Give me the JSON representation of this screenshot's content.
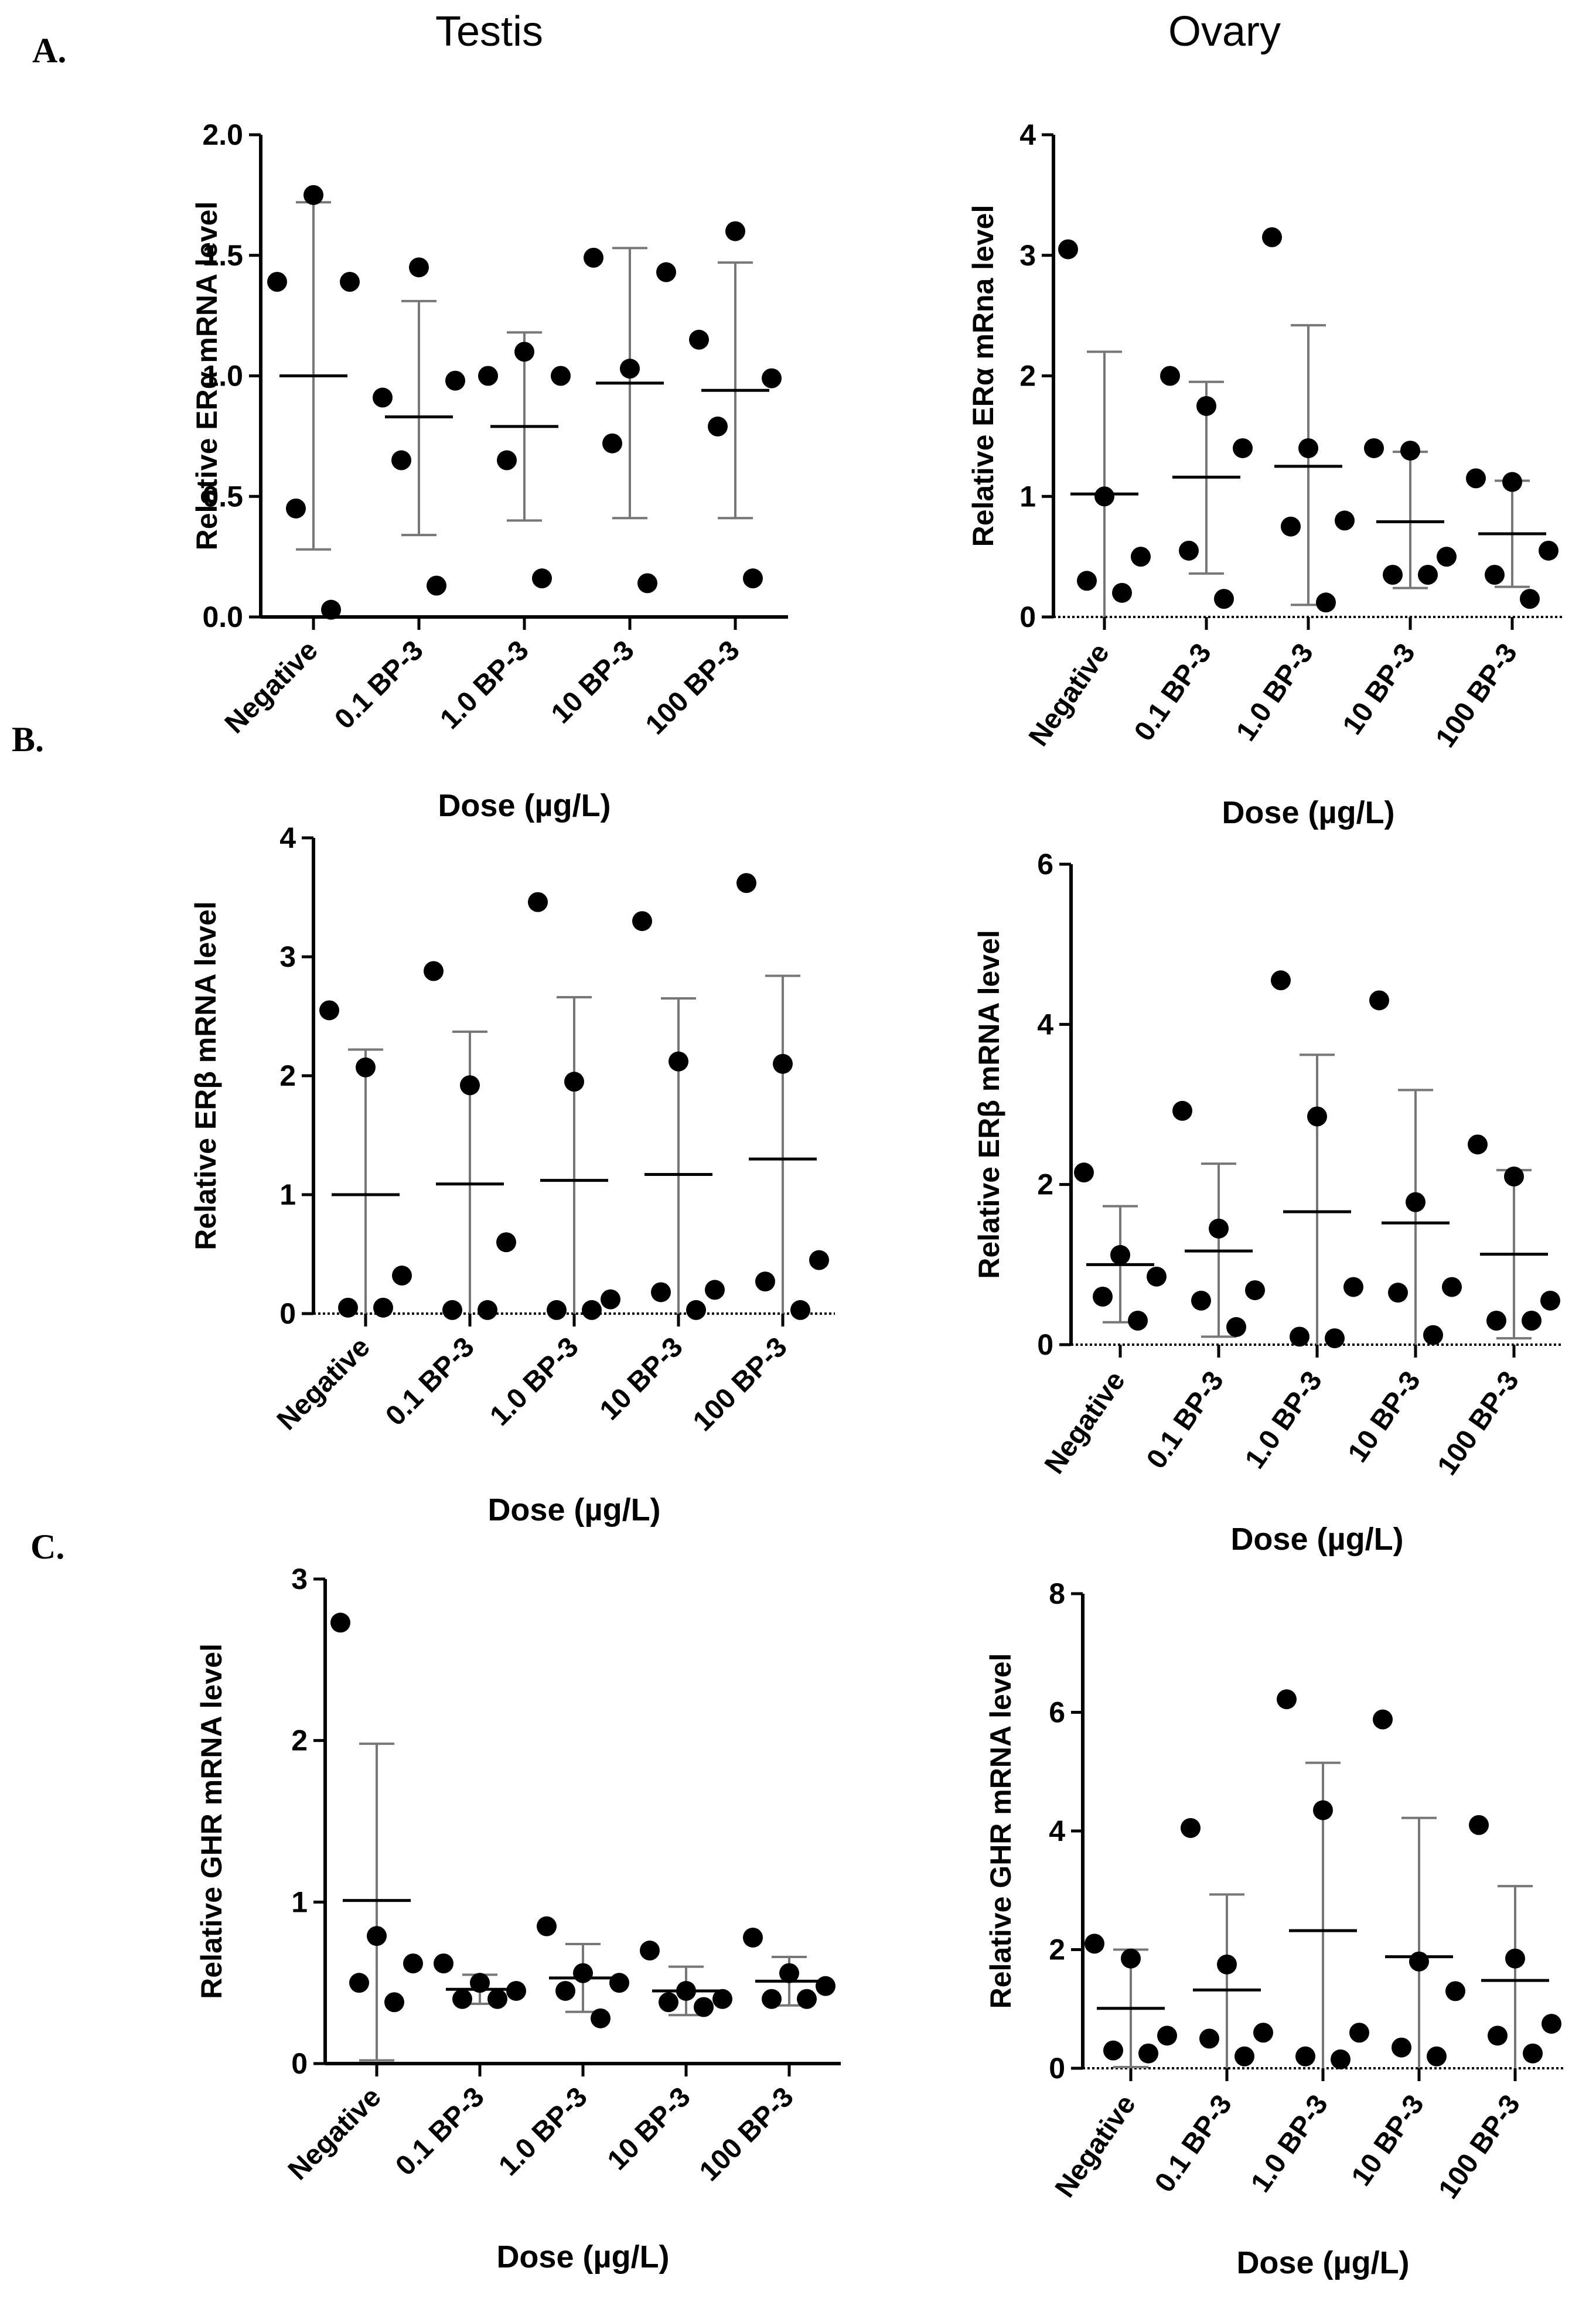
{
  "headers": {
    "col_left": "Testis",
    "col_right": "Ovary"
  },
  "panel_labels": [
    "A.",
    "B.",
    "C."
  ],
  "colors": {
    "points": "#000000",
    "axis": "#000000",
    "error_bars": "#777777",
    "mean_line": "#000000"
  },
  "chart_data": [
    {
      "type": "scatter",
      "panel": "A.",
      "tissue": "Testis",
      "ylabel": "Relative ERα mRNA level",
      "xlabel": "Dose (µg/L)",
      "ylim": [
        0,
        2.0
      ],
      "yticks": [
        "0.0",
        "0.5",
        "1.0",
        "1.5",
        "2.0"
      ],
      "zero_line": false,
      "categories": [
        "Negative",
        "0.1 BP-3",
        "1.0 BP-3",
        "10 BP-3",
        "100 BP-3"
      ],
      "points": [
        [
          1.39,
          1.75,
          1.39,
          0.45,
          0.03
        ],
        [
          0.91,
          1.45,
          0.98,
          0.65,
          0.13
        ],
        [
          1.0,
          1.1,
          1.0,
          0.65,
          0.16
        ],
        [
          1.49,
          1.03,
          1.43,
          0.72,
          0.14
        ],
        [
          1.15,
          1.6,
          0.99,
          0.79,
          0.16
        ]
      ],
      "mean": [
        1.0,
        0.83,
        0.79,
        0.97,
        0.94
      ],
      "error_low": [
        0.28,
        0.34,
        0.4,
        0.41,
        0.41
      ],
      "error_high": [
        1.72,
        1.31,
        1.18,
        1.53,
        1.47
      ]
    },
    {
      "type": "scatter",
      "panel": "A.",
      "tissue": "Ovary",
      "ylabel": "Relative ERα mRna level",
      "xlabel": "Dose (µg/L)",
      "ylim": [
        0,
        4
      ],
      "yticks": [
        "0",
        "1",
        "2",
        "3",
        "4"
      ],
      "zero_line": true,
      "categories": [
        "Negative",
        "0.1 BP-3",
        "1.0 BP-3",
        "10 BP-3",
        "100 BP-3"
      ],
      "points": [
        [
          3.05,
          1.0,
          0.5,
          0.3,
          0.2
        ],
        [
          2.0,
          1.75,
          1.4,
          0.55,
          0.15
        ],
        [
          3.15,
          1.4,
          0.8,
          0.75,
          0.12
        ],
        [
          1.4,
          1.38,
          0.5,
          0.35,
          0.35
        ],
        [
          1.15,
          1.12,
          0.55,
          0.35,
          0.15
        ]
      ],
      "mean": [
        1.02,
        1.16,
        1.25,
        0.79,
        0.69
      ],
      "error_low": [
        0.0,
        0.36,
        0.1,
        0.24,
        0.25
      ],
      "error_high": [
        2.2,
        1.95,
        2.42,
        1.37,
        1.13
      ]
    },
    {
      "type": "scatter",
      "panel": "B.",
      "tissue": "Testis",
      "ylabel": "Relative ERβ mRNA level",
      "xlabel": "Dose (µg/L)",
      "ylim": [
        0,
        4
      ],
      "yticks": [
        "0",
        "1",
        "2",
        "3",
        "4"
      ],
      "zero_line": true,
      "categories": [
        "Negative",
        "0.1 BP-3",
        "1.0 BP-3",
        "10 BP-3",
        "100 BP-3"
      ],
      "points": [
        [
          2.55,
          2.07,
          0.32,
          0.05,
          0.05
        ],
        [
          2.88,
          1.92,
          0.6,
          0.03,
          0.03
        ],
        [
          3.46,
          1.95,
          0.12,
          0.03,
          0.03
        ],
        [
          3.3,
          2.12,
          0.2,
          0.18,
          0.03
        ],
        [
          3.62,
          2.1,
          0.45,
          0.27,
          0.03
        ]
      ],
      "mean": [
        1.0,
        1.09,
        1.12,
        1.17,
        1.3
      ],
      "error_low": [
        0.0,
        0.0,
        0.0,
        0.0,
        0.0
      ],
      "error_high": [
        2.22,
        2.37,
        2.66,
        2.65,
        2.84
      ]
    },
    {
      "type": "scatter",
      "panel": "B.",
      "tissue": "Ovary",
      "ylabel": "Relative ERβ mRNA level",
      "xlabel": "Dose (µg/L)",
      "ylim": [
        0,
        6
      ],
      "yticks": [
        "0",
        "2",
        "4",
        "6"
      ],
      "zero_line": true,
      "categories": [
        "Negative",
        "0.1 BP-3",
        "1.0 BP-3",
        "10 BP-3",
        "100 BP-3"
      ],
      "points": [
        [
          2.15,
          1.12,
          0.85,
          0.6,
          0.3
        ],
        [
          2.92,
          1.45,
          0.68,
          0.55,
          0.22
        ],
        [
          4.55,
          2.85,
          0.72,
          0.1,
          0.08
        ],
        [
          4.3,
          1.78,
          0.72,
          0.65,
          0.12
        ],
        [
          2.5,
          2.1,
          0.55,
          0.3,
          0.3
        ]
      ],
      "mean": [
        1.0,
        1.17,
        1.66,
        1.52,
        1.13
      ],
      "error_low": [
        0.28,
        0.1,
        0.0,
        0.0,
        0.08
      ],
      "error_high": [
        1.73,
        2.26,
        3.62,
        3.18,
        2.18
      ]
    },
    {
      "type": "scatter",
      "panel": "C.",
      "tissue": "Testis",
      "ylabel": "Relative GHR mRNA level",
      "xlabel": "Dose (µg/L)",
      "ylim": [
        0,
        3
      ],
      "yticks": [
        "0",
        "1",
        "2",
        "3"
      ],
      "zero_line": false,
      "categories": [
        "Negative",
        "0.1 BP-3",
        "1.0 BP-3",
        "10 BP-3",
        "100 BP-3"
      ],
      "points": [
        [
          2.73,
          0.79,
          0.62,
          0.5,
          0.38
        ],
        [
          0.62,
          0.5,
          0.45,
          0.4,
          0.4
        ],
        [
          0.85,
          0.56,
          0.5,
          0.45,
          0.28
        ],
        [
          0.7,
          0.45,
          0.4,
          0.38,
          0.35
        ],
        [
          0.78,
          0.56,
          0.48,
          0.4,
          0.4
        ]
      ],
      "mean": [
        1.01,
        0.46,
        0.53,
        0.45,
        0.51
      ],
      "error_low": [
        0.02,
        0.37,
        0.32,
        0.3,
        0.36
      ],
      "error_high": [
        1.98,
        0.55,
        0.74,
        0.6,
        0.66
      ]
    },
    {
      "type": "scatter",
      "panel": "C.",
      "tissue": "Ovary",
      "ylabel": "Relative GHR mRNA level",
      "xlabel": "Dose (µg/L)",
      "ylim": [
        0,
        8
      ],
      "yticks": [
        "0",
        "2",
        "4",
        "6",
        "8"
      ],
      "zero_line": true,
      "categories": [
        "Negative",
        "0.1 BP-3",
        "1.0 BP-3",
        "10 BP-3",
        "100 BP-3"
      ],
      "points": [
        [
          2.1,
          1.85,
          0.55,
          0.3,
          0.25
        ],
        [
          4.05,
          1.75,
          0.6,
          0.5,
          0.2
        ],
        [
          6.22,
          4.35,
          0.6,
          0.2,
          0.15
        ],
        [
          5.88,
          1.8,
          1.3,
          0.35,
          0.2
        ],
        [
          4.1,
          1.85,
          0.75,
          0.55,
          0.25
        ]
      ],
      "mean": [
        1.01,
        1.32,
        2.32,
        1.88,
        1.48
      ],
      "error_low": [
        0.02,
        0.0,
        0.0,
        0.0,
        0.0
      ],
      "error_high": [
        2.0,
        2.93,
        5.15,
        4.22,
        3.07
      ]
    }
  ]
}
